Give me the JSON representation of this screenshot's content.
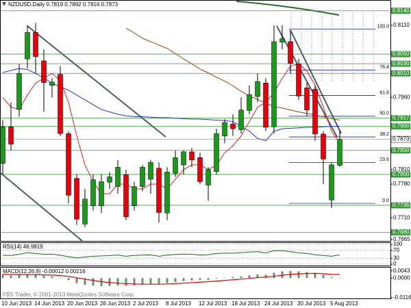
{
  "chart_data": [
    {
      "type": "candlestick",
      "title": "NZDUSD,Daily  0.7819 0.7892 0.7816 0.7873",
      "categories": [
        "10 Jun 2013",
        null,
        null,
        null,
        "14 Jun 2013",
        null,
        null,
        null,
        "20 Jun 2013",
        null,
        null,
        null,
        "26 Jun 2013",
        null,
        null,
        null,
        "2 Jul 2013",
        null,
        null,
        null,
        "8 Jul 2013",
        null,
        null,
        null,
        "12 Jul 2013",
        null,
        null,
        null,
        "18 Jul 2013",
        null,
        null,
        null,
        "24 Jul 2013",
        null,
        null,
        null,
        "30 Jul 2013",
        null,
        null,
        null,
        "5 Aug 2013",
        null
      ],
      "open": [
        0.7823,
        0.7899,
        0.7935,
        0.804,
        0.8095,
        0.8036,
        0.7985,
        0.8008,
        0.7885,
        0.7792,
        0.7697,
        0.7735,
        0.7735,
        0.7784,
        0.7775,
        0.78,
        0.7735,
        0.7775,
        0.779,
        0.7813,
        0.772,
        0.7802,
        0.782,
        0.7847,
        0.7835,
        0.7778,
        0.7806,
        0.788,
        0.7905,
        0.7893,
        0.7933,
        0.7962,
        0.799,
        0.7899,
        0.8075,
        0.8076,
        0.803,
        0.798,
        0.7977,
        0.7884,
        0.7747,
        0.7819
      ],
      "high": [
        0.7913,
        0.795,
        0.803,
        0.811,
        0.8115,
        0.806,
        0.8,
        0.8025,
        0.789,
        0.78,
        0.777,
        0.78,
        0.78,
        0.7805,
        0.783,
        0.781,
        0.7785,
        0.782,
        0.783,
        0.7825,
        0.7815,
        0.785,
        0.785,
        0.7855,
        0.7845,
        0.7815,
        0.7895,
        0.7915,
        0.7925,
        0.796,
        0.7985,
        0.801,
        0.8,
        0.811,
        0.811,
        0.81,
        0.804,
        0.799,
        0.7985,
        0.789,
        0.7825,
        0.7892
      ],
      "low": [
        0.78,
        0.785,
        0.792,
        0.802,
        0.801,
        0.793,
        0.796,
        0.788,
        0.774,
        0.7695,
        0.769,
        0.7725,
        0.772,
        0.777,
        0.776,
        0.7705,
        0.7725,
        0.7765,
        0.776,
        0.77,
        0.7705,
        0.7795,
        0.78,
        0.7815,
        0.778,
        0.7745,
        0.78,
        0.7865,
        0.788,
        0.7885,
        0.7925,
        0.795,
        0.789,
        0.7885,
        0.806,
        0.801,
        0.7955,
        0.792,
        0.787,
        0.778,
        0.773,
        0.7816
      ],
      "close": [
        0.7899,
        0.7863,
        0.801,
        0.8095,
        0.8045,
        0.7991,
        0.7992,
        0.7885,
        0.7757,
        0.7707,
        0.7749,
        0.7789,
        0.7785,
        0.7795,
        0.7815,
        0.7712,
        0.7775,
        0.7815,
        0.7825,
        0.7721,
        0.7805,
        0.7835,
        0.7847,
        0.783,
        0.7785,
        0.781,
        0.7885,
        0.7908,
        0.7895,
        0.7934,
        0.7966,
        0.7993,
        0.7898,
        0.8076,
        0.8082,
        0.8031,
        0.7963,
        0.7934,
        0.7884,
        0.7832,
        0.782,
        0.7873
      ],
      "up_color": "#1a9a1a",
      "down_color": "#e8000b",
      "series": [
        {
          "color": "#2030d0",
          "values": [
            0.8012,
            0.8016,
            0.802,
            0.8018,
            0.801,
            0.8,
            0.799,
            0.7982,
            0.7975,
            0.7965,
            0.7955,
            0.7945,
            0.7935,
            0.793,
            0.7925,
            0.7922,
            0.792,
            0.792,
            0.7919,
            0.7918,
            0.7918,
            0.7917,
            0.7916,
            0.7915,
            0.7915,
            0.7914,
            0.7913,
            0.7912,
            0.791,
            0.79,
            0.789,
            0.7875,
            0.787,
            0.789,
            0.7895,
            0.7896,
            0.7897,
            0.7898,
            0.7898,
            0.7899,
            0.79,
            0.79
          ]
        },
        {
          "color": "#e02020",
          "values": [
            0.796,
            0.794,
            0.7935,
            0.7965,
            0.799,
            0.8,
            0.801,
            0.7995,
            0.795,
            0.788,
            0.782,
            0.7785,
            0.776,
            0.776,
            0.778,
            0.778,
            0.777,
            0.777,
            0.778,
            0.778,
            0.777,
            0.779,
            0.781,
            0.782,
            0.782,
            0.781,
            0.782,
            0.7845,
            0.786,
            0.788,
            0.791,
            0.794,
            0.795,
            0.797,
            0.8,
            0.8025,
            0.803,
            0.8015,
            0.7985,
            0.794,
            0.789,
            0.7865
          ]
        },
        {
          "color": "#8b4513",
          "values": [
            null,
            null,
            null,
            null,
            null,
            null,
            null,
            null,
            null,
            null,
            null,
            null,
            null,
            null,
            null,
            0.8104,
            0.8094,
            0.8083,
            0.8076,
            0.8069,
            0.8062,
            0.8051,
            0.804,
            0.803,
            0.8019,
            0.8011,
            0.8002,
            0.7994,
            0.7984,
            0.7973,
            0.7963,
            0.7956,
            0.7948,
            0.7941,
            0.7938,
            0.7934,
            0.793,
            0.7927,
            0.7923,
            0.792,
            0.7916,
            0.7913
          ]
        }
      ],
      "ylim": [
        0.7662,
        0.8161
      ],
      "yticks": [
        {
          "value": 0.811,
          "label": "0.8110"
        },
        {
          "value": 0.796,
          "label": "0.7960"
        },
        {
          "value": 0.781,
          "label": "0.7810"
        },
        {
          "value": 0.778,
          "label": "0.7780"
        },
        {
          "value": 0.771,
          "label": "0.7710"
        },
        {
          "value": 0.7665,
          "label": "0.7665"
        }
      ],
      "levels": [
        {
          "value": 0.814,
          "label": "0.8140"
        },
        {
          "value": 0.805,
          "label": "0.8050"
        },
        {
          "value": 0.803,
          "label": "0.8030"
        },
        {
          "value": 0.801,
          "label": "0.8010"
        },
        {
          "value": 0.7917,
          "label": "0.7917"
        },
        {
          "value": 0.79,
          "label": "0.7900"
        },
        {
          "value": 0.785,
          "label": "0.7850"
        },
        {
          "value": 0.78,
          "label": "0.7800"
        },
        {
          "value": 0.7736,
          "label": "0.7736"
        },
        {
          "value": 0.768,
          "label": "0.7680"
        }
      ],
      "level_color": "#3a9a3a",
      "current_price": {
        "value": 0.7873,
        "label": "0.7873"
      },
      "fibonacci": {
        "color": "#1020b0",
        "levels": [
          {
            "value": 0.8102,
            "label": "100.0"
          },
          {
            "value": 0.8017,
            "label": "76.4"
          },
          {
            "value": 0.7964,
            "label": "61.8"
          },
          {
            "value": 0.7921,
            "label": "50.0"
          },
          {
            "value": 0.7878,
            "label": "38.2"
          },
          {
            "value": 0.7825,
            "label": "23.6"
          },
          {
            "value": 0.774,
            "label": "0.0"
          }
        ]
      }
    },
    {
      "type": "line",
      "title": "RSI(14) 46.9819",
      "color": "#1a6a1a",
      "values": [
        45,
        44,
        50,
        58,
        54,
        50,
        51,
        45,
        38,
        32,
        36,
        40,
        42,
        43,
        46,
        40,
        44,
        46,
        47,
        40,
        46,
        49,
        51,
        50,
        46,
        48,
        54,
        56,
        55,
        58,
        61,
        63,
        57,
        68,
        68,
        63,
        57,
        54,
        48,
        44,
        40,
        46.9819
      ],
      "ylim": [
        0,
        100
      ],
      "yticks": [
        100,
        70,
        30,
        0
      ],
      "grid": true
    },
    {
      "type": "macd",
      "title": "MACD(12,26,9) -0.00012 0.00216",
      "histogram_color": "#6f8f6f",
      "signal_color": "#e00000",
      "histogram": [
        0.002,
        0.0015,
        0.0018,
        0.0022,
        0.002,
        0.0015,
        0.001,
        0.0002,
        -0.0012,
        -0.003,
        -0.004,
        -0.0045,
        -0.0048,
        -0.0047,
        -0.0044,
        -0.0046,
        -0.0044,
        -0.004,
        -0.0035,
        -0.0036,
        -0.003,
        -0.0024,
        -0.0018,
        -0.0014,
        -0.0012,
        -0.001,
        -0.0004,
        0.0002,
        0.0006,
        0.001,
        0.0016,
        0.0022,
        0.002,
        0.0032,
        0.004,
        0.0042,
        0.004,
        0.0036,
        0.003,
        0.002,
        0.0005,
        -0.00012
      ],
      "signal": [
        0.0022,
        0.0021,
        0.002,
        0.002,
        0.002,
        0.0019,
        0.0018,
        0.0015,
        0.001,
        0.0002,
        -0.0006,
        -0.0014,
        -0.0021,
        -0.0026,
        -0.003,
        -0.0033,
        -0.0035,
        -0.0036,
        -0.0036,
        -0.0036,
        -0.0035,
        -0.0033,
        -0.003,
        -0.0027,
        -0.0024,
        -0.0021,
        -0.0018,
        -0.0014,
        -0.001,
        -0.0006,
        -0.0002,
        0.0003,
        0.0006,
        0.0011,
        0.0017,
        0.0022,
        0.0025,
        0.0027,
        0.0028,
        0.0026,
        0.0022,
        0.00216
      ],
      "ylim": [
        -0.01163,
        0.0058
      ],
      "yticks": [
        {
          "value": 0.0043,
          "label": "0.0043"
        },
        {
          "value": 0,
          "label": "0.0000"
        },
        {
          "value": -0.01163,
          "label": "-0.01163"
        }
      ]
    }
  ],
  "footer": "FBS Trader, © 2001-2013 MetaQuotes Software Corp."
}
